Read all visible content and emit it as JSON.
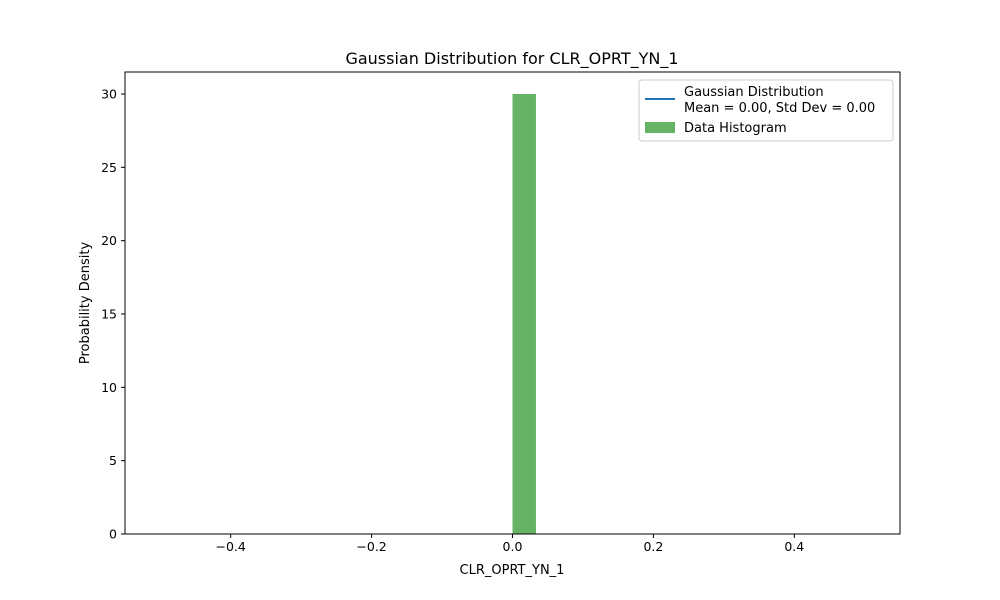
{
  "chart_data": {
    "type": "bar",
    "title": "Gaussian Distribution for CLR_OPRT_YN_1",
    "xlabel": "CLR_OPRT_YN_1",
    "ylabel": "Probability Density",
    "xlim": [
      -0.55,
      0.55
    ],
    "ylim": [
      0,
      31.5
    ],
    "xticks": [
      -0.4,
      -0.2,
      0.0,
      0.2,
      0.4
    ],
    "xtick_labels": [
      "−0.4",
      "−0.2",
      "0.0",
      "0.2",
      "0.4"
    ],
    "yticks": [
      0,
      5,
      10,
      15,
      20,
      25,
      30
    ],
    "ytick_labels": [
      "0",
      "5",
      "10",
      "15",
      "20",
      "25",
      "30"
    ],
    "grid": false,
    "legend_position": "top-right",
    "histogram": {
      "name": "Data Histogram",
      "color": "#66b366",
      "bins": [
        {
          "x0": 0.0,
          "x1": 0.0333,
          "value": 30
        }
      ]
    },
    "gaussian": {
      "name_line1": "Gaussian Distribution",
      "name_line2": "Mean = 0.00, Std Dev = 0.00",
      "color": "#1f77b4",
      "mean": 0.0,
      "std": 0.0
    }
  }
}
